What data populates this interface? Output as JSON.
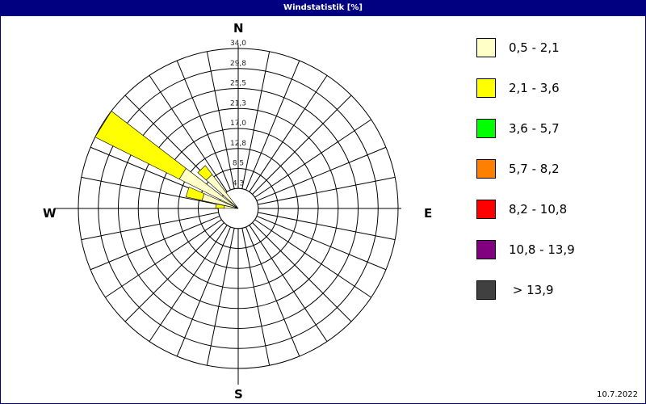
{
  "title": "Windstatistik [%]",
  "date": "10.7.2022",
  "chart_data": {
    "type": "windrose",
    "title": "Windstatistik [%]",
    "unit": "%",
    "rlim": [
      0,
      34.0
    ],
    "ring_labels": [
      "4,3",
      "8,5",
      "12,8",
      "17,0",
      "21,3",
      "25,5",
      "29,8",
      "34,0"
    ],
    "ring_values": [
      4.25,
      8.5,
      12.75,
      17.0,
      21.25,
      25.5,
      29.75,
      34.0
    ],
    "sector_count": 32,
    "compass": {
      "n": "N",
      "e": "E",
      "s": "S",
      "w": "W"
    },
    "grid": true,
    "legend_placement": "right",
    "classes": [
      {
        "label": "0,5 - 2,1",
        "color": "#ffffc8"
      },
      {
        "label": "2,1 - 3,6",
        "color": "#ffff00"
      },
      {
        "label": "3,6 - 5,7",
        "color": "#00ff00"
      },
      {
        "label": "5,7 - 8,2",
        "color": "#ff8000"
      },
      {
        "label": "8,2 - 10,8",
        "color": "#ff0000"
      },
      {
        "label": "10,8 - 13,9",
        "color": "#800080"
      },
      {
        "label": " > 13,9",
        "color": "#404040"
      }
    ],
    "bars": [
      {
        "direction_deg": 276,
        "values": [
          3.0,
          1.8
        ]
      },
      {
        "direction_deg": 288,
        "values": [
          7.9,
          3.5
        ]
      },
      {
        "direction_deg": 302,
        "values": [
          14.0,
          20.0
        ]
      },
      {
        "direction_deg": 317,
        "values": [
          9.1,
          2.4
        ]
      }
    ]
  }
}
